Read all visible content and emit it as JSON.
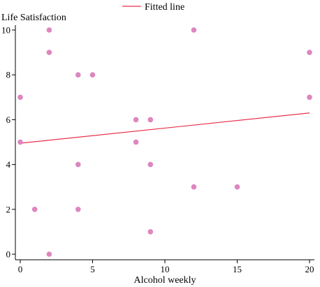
{
  "chart_data": {
    "type": "scatter",
    "xlabel": "Alcohol weekly",
    "ylabel": "Life Satisfaction",
    "xlim": [
      0,
      20
    ],
    "ylim": [
      0,
      10
    ],
    "x_ticks": [
      0,
      5,
      10,
      15,
      20
    ],
    "y_ticks": [
      0,
      2,
      4,
      6,
      8,
      10
    ],
    "grid": false,
    "legend_position": "top-center",
    "colors": {
      "points": "#dd86c0",
      "fit_line": "#e8324a",
      "axis": "#000000"
    },
    "series": [
      {
        "type": "scatter",
        "points": [
          {
            "x": 0,
            "y": 7
          },
          {
            "x": 0,
            "y": 5
          },
          {
            "x": 1,
            "y": 2
          },
          {
            "x": 2,
            "y": 10
          },
          {
            "x": 2,
            "y": 9
          },
          {
            "x": 2,
            "y": 0
          },
          {
            "x": 4,
            "y": 8
          },
          {
            "x": 4,
            "y": 4
          },
          {
            "x": 4,
            "y": 2
          },
          {
            "x": 5,
            "y": 8
          },
          {
            "x": 8,
            "y": 6
          },
          {
            "x": 8,
            "y": 5
          },
          {
            "x": 9,
            "y": 6
          },
          {
            "x": 9,
            "y": 4
          },
          {
            "x": 9,
            "y": 1
          },
          {
            "x": 12,
            "y": 10
          },
          {
            "x": 12,
            "y": 3
          },
          {
            "x": 15,
            "y": 3
          },
          {
            "x": 20,
            "y": 9
          },
          {
            "x": 20,
            "y": 7
          }
        ]
      },
      {
        "type": "line",
        "name": "Fitted line",
        "points": [
          {
            "x": 0,
            "y": 4.95
          },
          {
            "x": 20,
            "y": 6.3
          }
        ]
      }
    ]
  }
}
